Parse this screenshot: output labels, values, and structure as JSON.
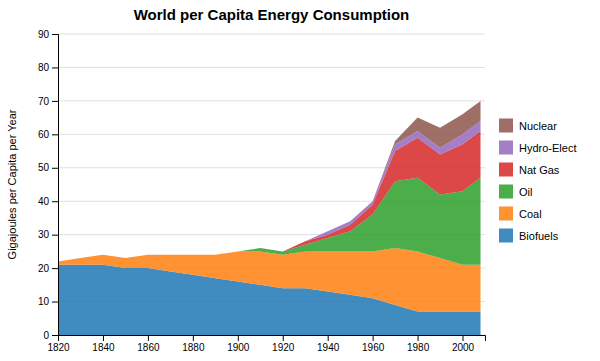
{
  "chart_data": {
    "type": "area",
    "stacked": true,
    "title": "World per Capita Energy Consumption",
    "ylabel": "Gigajoules per Capita per Year",
    "x": [
      1820,
      1830,
      1840,
      1850,
      1860,
      1870,
      1880,
      1890,
      1900,
      1910,
      1920,
      1930,
      1940,
      1950,
      1960,
      1970,
      1980,
      1990,
      2000,
      2008
    ],
    "series": [
      {
        "name": "Biofuels",
        "values": [
          21,
          21,
          21,
          20,
          20,
          19,
          18,
          17,
          16,
          15,
          14,
          14,
          13,
          12,
          11,
          9,
          7,
          7,
          7,
          7
        ]
      },
      {
        "name": "Coal",
        "values": [
          1,
          2,
          3,
          3,
          4,
          5,
          6,
          7,
          9,
          10,
          10,
          11,
          12,
          13,
          14,
          17,
          18,
          16,
          14,
          14
        ]
      },
      {
        "name": "Oil",
        "values": [
          0,
          0,
          0,
          0,
          0,
          0,
          0,
          0,
          0,
          1,
          1,
          2,
          4,
          6,
          11,
          20,
          22,
          19,
          22,
          26
        ]
      },
      {
        "name": "Nat Gas",
        "values": [
          0,
          0,
          0,
          0,
          0,
          0,
          0,
          0,
          0,
          0,
          0,
          1,
          1,
          2,
          3,
          9,
          12,
          12,
          14,
          14
        ]
      },
      {
        "name": "Hydro-Elect",
        "values": [
          0,
          0,
          0,
          0,
          0,
          0,
          0,
          0,
          0,
          0,
          0,
          0,
          1,
          1,
          1,
          2,
          2,
          2,
          3,
          3
        ]
      },
      {
        "name": "Nuclear",
        "values": [
          0,
          0,
          0,
          0,
          0,
          0,
          0,
          0,
          0,
          0,
          0,
          0,
          0,
          0,
          0,
          1,
          4,
          6,
          6,
          6
        ]
      }
    ],
    "xlim": [
      1820,
      2010
    ],
    "xticks": [
      1820,
      1840,
      1860,
      1880,
      1900,
      1920,
      1940,
      1960,
      1980,
      2000
    ],
    "ylim": [
      0,
      90
    ],
    "yticks": [
      0,
      10,
      20,
      30,
      40,
      50,
      60,
      70,
      80,
      90
    ],
    "grid": true,
    "legend": "right"
  }
}
